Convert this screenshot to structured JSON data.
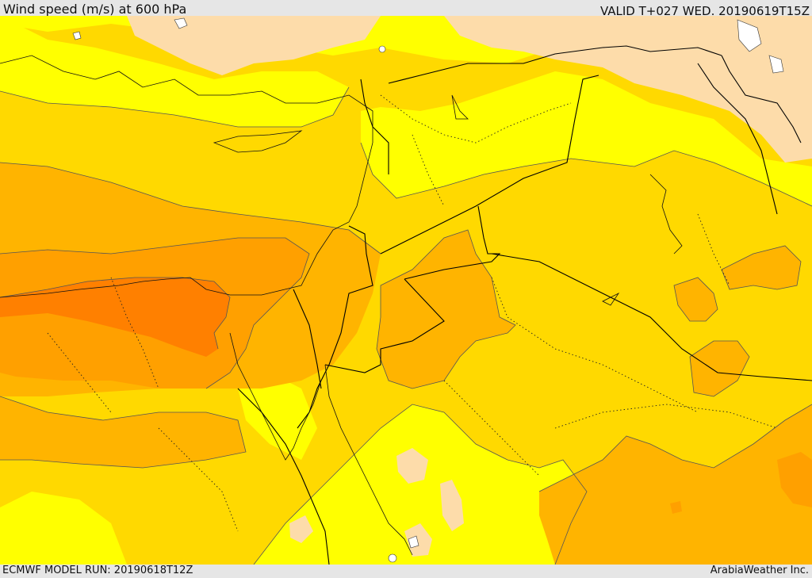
{
  "header": {
    "title": "Wind speed (m/s) at 600 hPa",
    "valid": "VALID T+027 WED. 20190619T15Z"
  },
  "footer": {
    "model_run": "ECMWF MODEL RUN: 20190618T12Z",
    "credit": "ArabiaWeather Inc."
  },
  "map": {
    "parameter": "wind speed",
    "level": "600 hPa",
    "colors": {
      "lowest": "#fddcaa",
      "low": "#ffff00",
      "moderate": "#ffd900",
      "elevated": "#ffb400",
      "high": "#ffa000",
      "highest": "#ff8000",
      "water": "#ffffff",
      "contour": "#555555",
      "border": "#000000"
    }
  }
}
